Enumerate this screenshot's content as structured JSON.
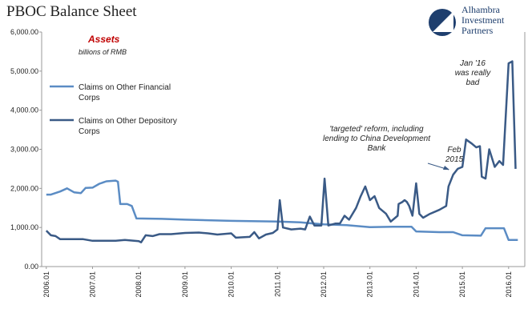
{
  "chart_data": {
    "type": "line",
    "title": "PBOC Balance Sheet",
    "subtitle": "Assets",
    "y_label": "billions of RMB",
    "logo": [
      "Alhambra",
      "Investment",
      "Partners"
    ],
    "annotations": [
      [
        "'targeted' reform, including",
        "lending to China Development",
        "Bank"
      ],
      [
        "Feb",
        "2015"
      ],
      [
        "Jan '16",
        "was really",
        "bad"
      ]
    ],
    "legend": "left",
    "grid": false,
    "xlim": [
      2005.9,
      2016.35
    ],
    "xticks": [
      {
        "value": 2006,
        "label": "2006.01"
      },
      {
        "value": 2007,
        "label": "2007.01"
      },
      {
        "value": 2008,
        "label": "2008.01"
      },
      {
        "value": 2009,
        "label": "2009.01"
      },
      {
        "value": 2010,
        "label": "2010.01"
      },
      {
        "value": 2011,
        "label": "2011.01"
      },
      {
        "value": 2012,
        "label": "2012.01"
      },
      {
        "value": 2013,
        "label": "2013.01"
      },
      {
        "value": 2014,
        "label": "2014.01"
      },
      {
        "value": 2015,
        "label": "2015.01"
      },
      {
        "value": 2016,
        "label": "2016.01"
      }
    ],
    "ylim": [
      0,
      6000
    ],
    "yticks": [
      {
        "value": 0,
        "label": "0.00"
      },
      {
        "value": 1000,
        "label": "1,000.00"
      },
      {
        "value": 2000,
        "label": "2,000.00"
      },
      {
        "value": 3000,
        "label": "3,000.00"
      },
      {
        "value": 4000,
        "label": "4,000.00"
      },
      {
        "value": 5000,
        "label": "5,000.00"
      },
      {
        "value": 6000,
        "label": "6,000.00"
      }
    ],
    "series": [
      {
        "name": "Claims on Other Financial Corps",
        "color": "#5b8cc4",
        "x": [
          2006.0,
          2006.1,
          2006.3,
          2006.45,
          2006.6,
          2006.75,
          2006.85,
          2007.0,
          2007.15,
          2007.3,
          2007.5,
          2007.55,
          2007.6,
          2007.75,
          2007.85,
          2007.95,
          2008.5,
          2009.0,
          2010.0,
          2011.0,
          2011.5,
          2012.0,
          2012.5,
          2013.0,
          2013.5,
          2013.9,
          2014.0,
          2014.5,
          2014.8,
          2015.0,
          2015.4,
          2015.5,
          2015.9,
          2016.0,
          2016.2
        ],
        "values": [
          1840,
          1840,
          1920,
          2000,
          1900,
          1880,
          2010,
          2020,
          2120,
          2180,
          2200,
          2170,
          1600,
          1600,
          1550,
          1230,
          1220,
          1200,
          1170,
          1150,
          1130,
          1080,
          1060,
          1010,
          1020,
          1020,
          900,
          880,
          880,
          800,
          790,
          980,
          980,
          680,
          680
        ]
      },
      {
        "name": "Claims on Other Depository Corps",
        "color": "#3a5a86",
        "x": [
          2006.0,
          2006.1,
          2006.2,
          2006.3,
          2006.5,
          2006.8,
          2007.0,
          2007.5,
          2007.7,
          2008.0,
          2008.05,
          2008.15,
          2008.3,
          2008.45,
          2008.7,
          2009.0,
          2009.3,
          2009.5,
          2009.7,
          2010.0,
          2010.1,
          2010.4,
          2010.5,
          2010.6,
          2010.75,
          2010.9,
          2011.0,
          2011.05,
          2011.12,
          2011.3,
          2011.5,
          2011.6,
          2011.7,
          2011.8,
          2011.95,
          2012.02,
          2012.1,
          2012.25,
          2012.35,
          2012.45,
          2012.55,
          2012.7,
          2012.8,
          2012.9,
          2013.0,
          2013.1,
          2013.2,
          2013.35,
          2013.45,
          2013.6,
          2013.62,
          2013.7,
          2013.75,
          2013.8,
          2013.85,
          2013.92,
          2014.0,
          2014.07,
          2014.15,
          2014.3,
          2014.5,
          2014.65,
          2014.7,
          2014.8,
          2014.9,
          2015.0,
          2015.08,
          2015.2,
          2015.3,
          2015.38,
          2015.42,
          2015.5,
          2015.58,
          2015.7,
          2015.8,
          2015.88,
          2016.0,
          2016.08,
          2016.15
        ],
        "values": [
          920,
          800,
          780,
          700,
          700,
          700,
          660,
          660,
          680,
          650,
          620,
          800,
          780,
          830,
          830,
          860,
          870,
          850,
          820,
          850,
          740,
          760,
          880,
          720,
          820,
          860,
          950,
          1700,
          1000,
          950,
          970,
          950,
          1280,
          1050,
          1050,
          2250,
          1050,
          1100,
          1100,
          1300,
          1200,
          1500,
          1800,
          2050,
          1700,
          1800,
          1500,
          1350,
          1150,
          1300,
          1600,
          1650,
          1700,
          1650,
          1550,
          1300,
          2130,
          1350,
          1250,
          1350,
          1450,
          1550,
          2050,
          2350,
          2500,
          2550,
          3250,
          3150,
          3050,
          3080,
          2300,
          2250,
          3000,
          2550,
          2700,
          2600,
          5200,
          5250,
          2500
        ]
      }
    ]
  }
}
